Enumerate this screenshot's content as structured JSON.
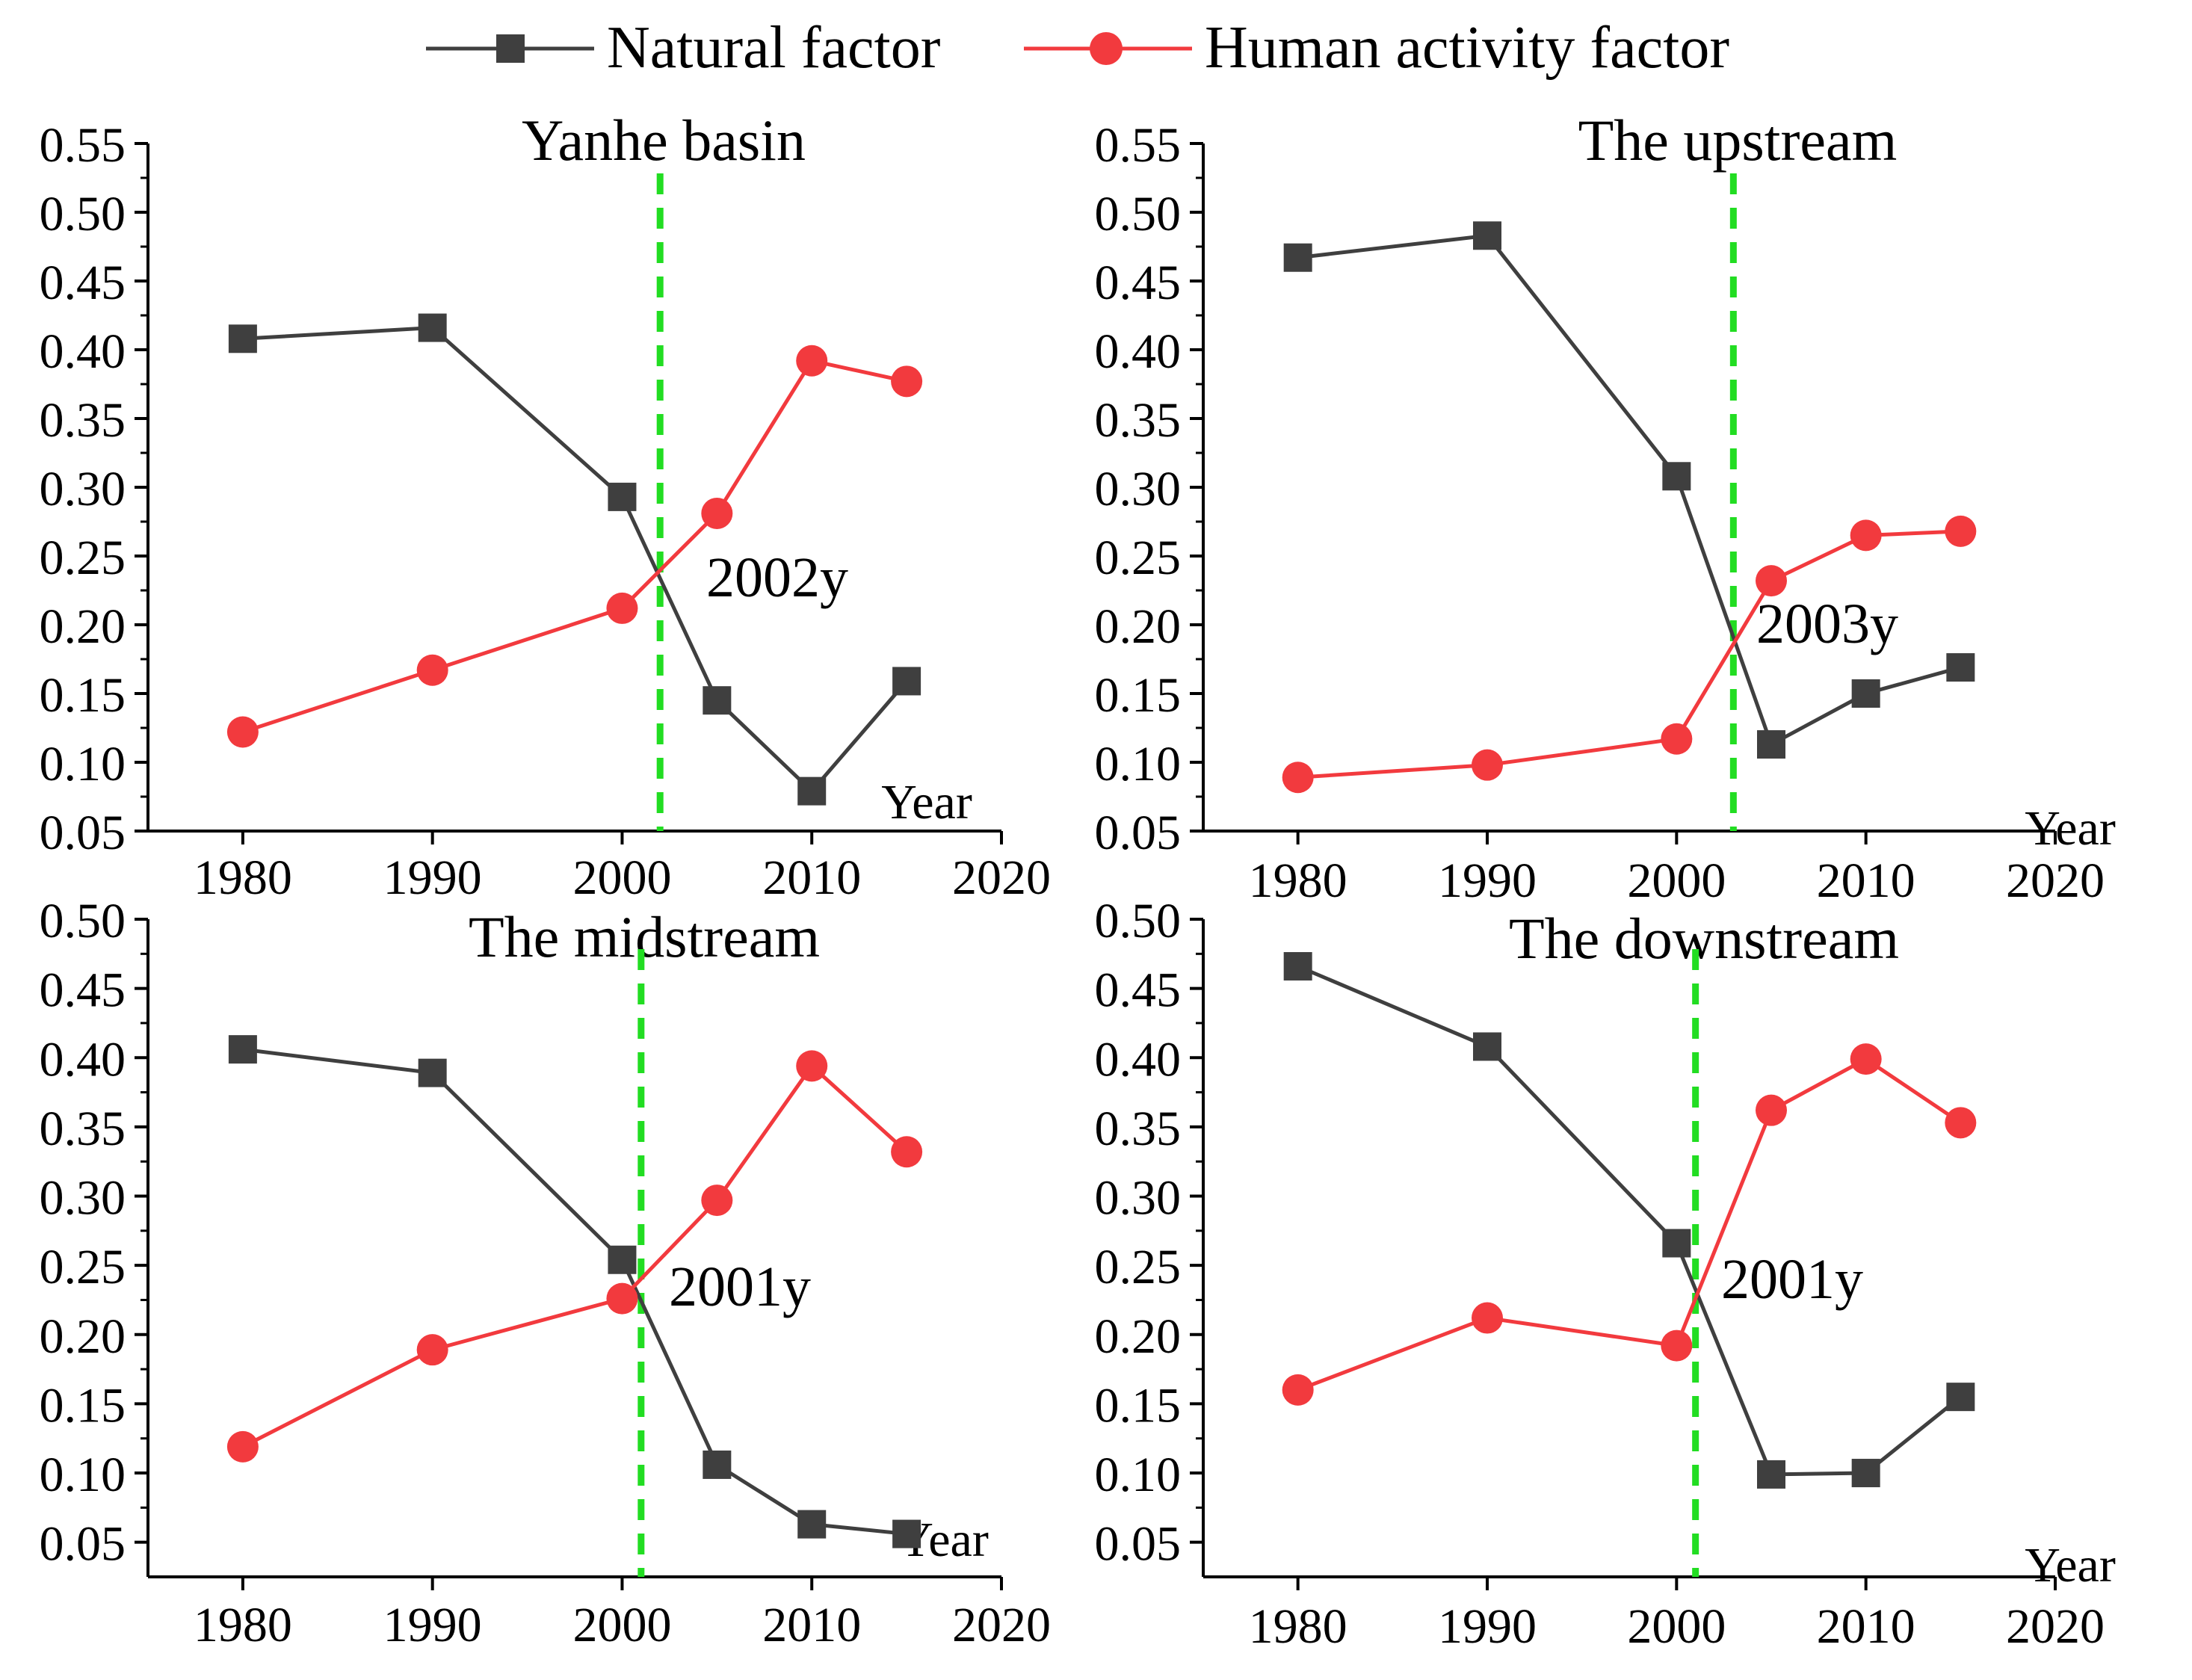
{
  "legend": {
    "natural_label": "Natural factor",
    "human_label": "Human activity factor"
  },
  "colors": {
    "natural": "#3f3f3f",
    "human": "#f23a3e",
    "threshold": "#22dd22",
    "axis": "#000000"
  },
  "chart_data": [
    {
      "type": "line",
      "title": "Yanhe basin",
      "xlabel": "Year",
      "ylabel": "",
      "xlim": [
        1975,
        2020
      ],
      "ylim": [
        0.05,
        0.55
      ],
      "xticks": [
        "1980",
        "1990",
        "2000",
        "2010",
        "2020"
      ],
      "yticks": [
        "0.05",
        "0.10",
        "0.15",
        "0.20",
        "0.25",
        "0.30",
        "0.35",
        "0.40",
        "0.45",
        "0.50",
        "0.55"
      ],
      "x": [
        1980,
        1990,
        2000,
        2005,
        2010,
        2015
      ],
      "series": [
        {
          "name": "Natural factor",
          "values": [
            0.408,
            0.416,
            0.293,
            0.145,
            0.079,
            0.159
          ]
        },
        {
          "name": "Human activity factor",
          "values": [
            0.122,
            0.167,
            0.212,
            0.281,
            0.392,
            0.377
          ]
        }
      ],
      "threshold_year": 2002,
      "annotation": "2002y"
    },
    {
      "type": "line",
      "title": "The upstream",
      "xlabel": "Year",
      "ylabel": "",
      "xlim": [
        1975,
        2020
      ],
      "ylim": [
        0.05,
        0.55
      ],
      "xticks": [
        "1980",
        "1990",
        "2000",
        "2010",
        "2020"
      ],
      "yticks": [
        "0.05",
        "0.10",
        "0.15",
        "0.20",
        "0.25",
        "0.30",
        "0.35",
        "0.40",
        "0.45",
        "0.50",
        "0.55"
      ],
      "x": [
        1980,
        1990,
        2000,
        2005,
        2010,
        2015
      ],
      "series": [
        {
          "name": "Natural factor",
          "values": [
            0.467,
            0.483,
            0.308,
            0.113,
            0.15,
            0.169
          ]
        },
        {
          "name": "Human activity factor",
          "values": [
            0.089,
            0.098,
            0.117,
            0.232,
            0.265,
            0.268
          ]
        }
      ],
      "threshold_year": 2003,
      "annotation": "2003y"
    },
    {
      "type": "line",
      "title": "The midstream",
      "xlabel": "Year",
      "ylabel": "",
      "xlim": [
        1975,
        2020
      ],
      "ylim": [
        0.025,
        0.5
      ],
      "xticks": [
        "1980",
        "1990",
        "2000",
        "2010",
        "2020"
      ],
      "yticks": [
        "0.05",
        "0.10",
        "0.15",
        "0.20",
        "0.25",
        "0.30",
        "0.35",
        "0.40",
        "0.45",
        "0.50"
      ],
      "x": [
        1980,
        1990,
        2000,
        2005,
        2010,
        2015
      ],
      "series": [
        {
          "name": "Natural factor",
          "values": [
            0.406,
            0.389,
            0.254,
            0.106,
            0.063,
            0.056
          ]
        },
        {
          "name": "Human activity factor",
          "values": [
            0.119,
            0.189,
            0.226,
            0.297,
            0.394,
            0.332
          ]
        }
      ],
      "threshold_year": 2001,
      "annotation": "2001y"
    },
    {
      "type": "line",
      "title": "The downstream",
      "xlabel": "Year",
      "ylabel": "",
      "xlim": [
        1975,
        2020
      ],
      "ylim": [
        0.025,
        0.5
      ],
      "xticks": [
        "1980",
        "1990",
        "2000",
        "2010",
        "2020"
      ],
      "yticks": [
        "0.05",
        "0.10",
        "0.15",
        "0.20",
        "0.25",
        "0.30",
        "0.35",
        "0.40",
        "0.45",
        "0.50"
      ],
      "x": [
        1980,
        1990,
        2000,
        2005,
        2010,
        2015
      ],
      "series": [
        {
          "name": "Natural factor",
          "values": [
            0.466,
            0.408,
            0.266,
            0.099,
            0.1,
            0.155
          ]
        },
        {
          "name": "Human activity factor",
          "values": [
            0.16,
            0.212,
            0.192,
            0.362,
            0.399,
            0.353
          ]
        }
      ],
      "threshold_year": 2001,
      "annotation": "2001y"
    }
  ]
}
